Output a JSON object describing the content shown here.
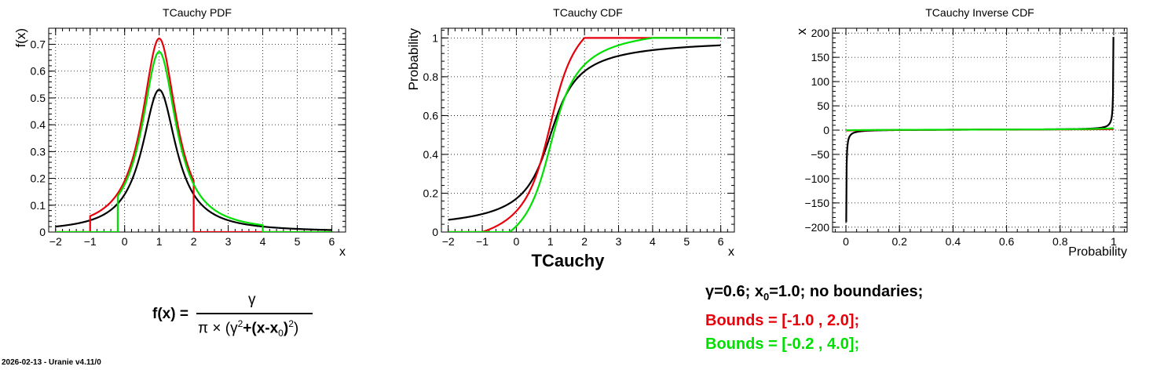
{
  "colors": {
    "black": "#000000",
    "red": "#e8000b",
    "green": "#00e000"
  },
  "chart_data": [
    {
      "type": "line",
      "title": "TCauchy PDF",
      "xlabel": "x",
      "ylabel": "f(x)",
      "xlim": [
        -2.2,
        6.4
      ],
      "ylim": [
        0,
        0.76
      ],
      "xticks": [
        -2,
        -1,
        0,
        1,
        2,
        3,
        4,
        5,
        6
      ],
      "xtick_labels": [
        "−2",
        "−1",
        "0",
        "1",
        "2",
        "3",
        "4",
        "5",
        "6"
      ],
      "yticks": [
        0,
        0.1,
        0.2,
        0.3,
        0.4,
        0.5,
        0.6,
        0.7
      ],
      "ytick_labels": [
        "0",
        "0.1",
        "0.2",
        "0.3",
        "0.4",
        "0.5",
        "0.6",
        "0.7"
      ],
      "grid": true,
      "series": [
        {
          "color": "black",
          "distribution": "cauchy",
          "x0": 1.0,
          "gamma": 0.6,
          "bounds": null
        },
        {
          "color": "red",
          "distribution": "cauchy",
          "x0": 1.0,
          "gamma": 0.6,
          "bounds": [
            -1.0,
            2.0
          ]
        },
        {
          "color": "green",
          "distribution": "cauchy",
          "x0": 1.0,
          "gamma": 0.6,
          "bounds": [
            -0.2,
            4.0
          ]
        }
      ]
    },
    {
      "type": "line",
      "title": "TCauchy CDF",
      "xlabel": "x",
      "ylabel": "Probability",
      "xlim": [
        -2.2,
        6.4
      ],
      "ylim": [
        0,
        1.05
      ],
      "xticks": [
        -2,
        -1,
        0,
        1,
        2,
        3,
        4,
        5,
        6
      ],
      "xtick_labels": [
        "−2",
        "−1",
        "0",
        "1",
        "2",
        "3",
        "4",
        "5",
        "6"
      ],
      "yticks": [
        0,
        0.2,
        0.4,
        0.6,
        0.8,
        1
      ],
      "ytick_labels": [
        "0",
        "0.2",
        "0.4",
        "0.6",
        "0.8",
        "1"
      ],
      "grid": true,
      "series": [
        {
          "color": "black",
          "distribution": "cauchy",
          "x0": 1.0,
          "gamma": 0.6,
          "bounds": null
        },
        {
          "color": "red",
          "distribution": "cauchy",
          "x0": 1.0,
          "gamma": 0.6,
          "bounds": [
            -1.0,
            2.0
          ]
        },
        {
          "color": "green",
          "distribution": "cauchy",
          "x0": 1.0,
          "gamma": 0.6,
          "bounds": [
            -0.2,
            4.0
          ]
        }
      ]
    },
    {
      "type": "line",
      "title": "TCauchy Inverse CDF",
      "xlabel": "Probability",
      "ylabel": "x",
      "xlim": [
        -0.05,
        1.05
      ],
      "ylim": [
        -210,
        210
      ],
      "xticks": [
        0,
        0.2,
        0.4,
        0.6,
        0.8,
        1
      ],
      "xtick_labels": [
        "0",
        "0.2",
        "0.4",
        "0.6",
        "0.8",
        "1"
      ],
      "yticks": [
        -200,
        -150,
        -100,
        -50,
        0,
        50,
        100,
        150,
        200
      ],
      "ytick_labels": [
        "−200",
        "−150",
        "−100",
        "−50",
        "0",
        "50",
        "100",
        "150",
        "200"
      ],
      "grid": true,
      "series": [
        {
          "color": "black",
          "distribution": "cauchy",
          "x0": 1.0,
          "gamma": 0.6,
          "bounds": null
        },
        {
          "color": "red",
          "distribution": "cauchy",
          "x0": 1.0,
          "gamma": 0.6,
          "bounds": [
            -1.0,
            2.0
          ]
        },
        {
          "color": "green",
          "distribution": "cauchy",
          "x0": 1.0,
          "gamma": 0.6,
          "bounds": [
            -0.2,
            4.0
          ]
        }
      ]
    }
  ],
  "caption": "TCauchy",
  "formula": {
    "lhs": "f(x) =",
    "numerator": "γ",
    "den_pi": "π × (γ",
    "den_sq1": "2",
    "den_mid": "+(x-x",
    "den_sub": "0",
    "den_close": ")",
    "den_sq2": "2",
    "den_end": ")"
  },
  "legend": {
    "line1_a": "γ=0.6;  x",
    "line1_sub": "0",
    "line1_b": "=1.0;   no boundaries;",
    "line2": "Bounds = [-1.0 , 2.0];",
    "line3": "Bounds = [-0.2 , 4.0];"
  },
  "footer": "2026-02-13 - Uranie v4.11/0"
}
